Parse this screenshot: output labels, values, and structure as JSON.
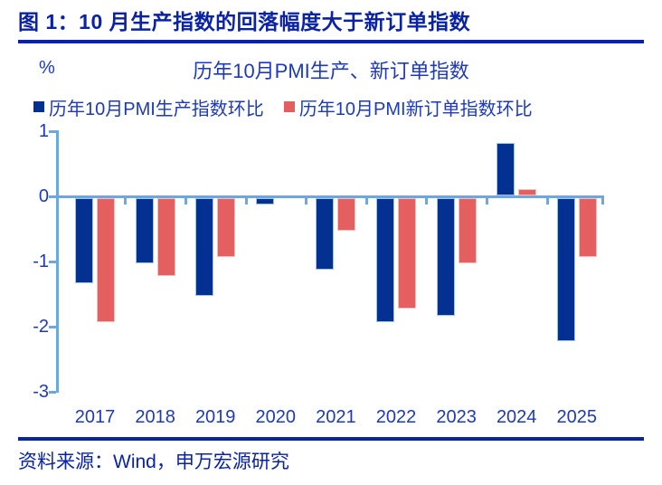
{
  "figure": {
    "title": "图 1：10 月生产指数的回落幅度大于新订单指数",
    "source": "资料来源：Wind，申万宏源研究"
  },
  "colors": {
    "heading_navy": "#0A23A4",
    "chart_text_blue": "#1E3ABA",
    "axis_light_blue": "#6FA7DC",
    "production_bar_navy": "#043191",
    "new_orders_bar_red": "#E45F5F"
  },
  "chart_data": {
    "type": "bar",
    "title": "历年10月PMI生产、新订单指数",
    "unit": "%",
    "categories": [
      "2017",
      "2018",
      "2019",
      "2020",
      "2021",
      "2022",
      "2023",
      "2024",
      "2025"
    ],
    "series": [
      {
        "name": "历年10月PMI生产指数环比",
        "color": "#043191",
        "values": [
          -1.3,
          -1.0,
          -1.5,
          -0.1,
          -1.1,
          -1.9,
          -1.8,
          0.8,
          -2.2
        ]
      },
      {
        "name": "历年10月PMI新订单指数环比",
        "color": "#E45F5F",
        "values": [
          -1.9,
          -1.2,
          -0.9,
          0.0,
          -0.5,
          -1.7,
          -1.0,
          0.1,
          -0.9
        ]
      }
    ],
    "ylim": [
      -3,
      1
    ],
    "yticks": [
      1,
      0,
      -1,
      -2,
      -3
    ],
    "grid": false,
    "legend_position": "top"
  }
}
